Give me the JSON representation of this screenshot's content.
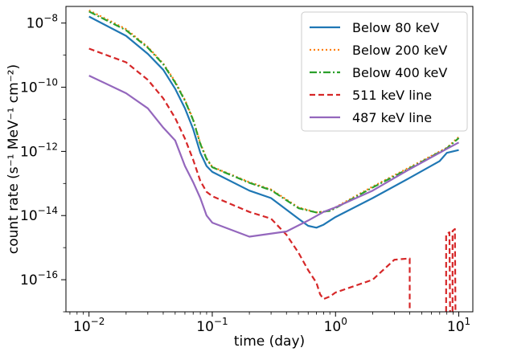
{
  "chart_data": {
    "type": "line",
    "title": "",
    "xlabel": "time (day)",
    "ylabel": "count rate (s⁻¹ MeV⁻¹ cm⁻²)",
    "xscale": "log",
    "yscale": "log",
    "xlim": [
      0.0065,
      13
    ],
    "ylim": [
      1e-17,
      3.3e-08
    ],
    "xticks": [
      {
        "value": 0.01,
        "base": "10",
        "exp": "−2"
      },
      {
        "value": 0.1,
        "base": "10",
        "exp": "−1"
      },
      {
        "value": 1,
        "base": "10",
        "exp": "0"
      },
      {
        "value": 10,
        "base": "10",
        "exp": "1"
      }
    ],
    "yticks": [
      {
        "value": 1e-16,
        "base": "10",
        "exp": "−16"
      },
      {
        "value": 1e-14,
        "base": "10",
        "exp": "−14"
      },
      {
        "value": 1e-12,
        "base": "10",
        "exp": "−12"
      },
      {
        "value": 1e-10,
        "base": "10",
        "exp": "−10"
      },
      {
        "value": 1e-08,
        "base": "10",
        "exp": "−8"
      }
    ],
    "legend_position": "top-right",
    "series": [
      {
        "name": "Below 80 keV",
        "color": "#1f77b4",
        "style": "solid",
        "points": [
          [
            0.01,
            1.6e-08
          ],
          [
            0.02,
            4e-09
          ],
          [
            0.03,
            1.1e-09
          ],
          [
            0.04,
            3.5e-10
          ],
          [
            0.05,
            9e-11
          ],
          [
            0.06,
            2.2e-11
          ],
          [
            0.07,
            5e-12
          ],
          [
            0.08,
            9e-13
          ],
          [
            0.09,
            3.5e-13
          ],
          [
            0.1,
            2.3e-13
          ],
          [
            0.2,
            6e-14
          ],
          [
            0.3,
            3.5e-14
          ],
          [
            0.5,
            8e-15
          ],
          [
            0.6,
            4.8e-15
          ],
          [
            0.7,
            4.2e-15
          ],
          [
            0.8,
            5.2e-15
          ],
          [
            1.0,
            9e-15
          ],
          [
            2.0,
            3.5e-14
          ],
          [
            4.0,
            1.5e-13
          ],
          [
            7.0,
            5e-13
          ],
          [
            8.0,
            9e-13
          ],
          [
            10.0,
            1.1e-12
          ]
        ]
      },
      {
        "name": "Below 200 keV",
        "color": "#ff7f0e",
        "style": "dotted",
        "points": [
          [
            0.01,
            2.5e-08
          ],
          [
            0.02,
            6.5e-09
          ],
          [
            0.03,
            1.8e-09
          ],
          [
            0.04,
            5.5e-10
          ],
          [
            0.05,
            1.5e-10
          ],
          [
            0.06,
            4e-11
          ],
          [
            0.07,
            1e-11
          ],
          [
            0.08,
            1.8e-12
          ],
          [
            0.09,
            6e-13
          ],
          [
            0.1,
            3.3e-13
          ],
          [
            0.2,
            1.1e-13
          ],
          [
            0.3,
            6.5e-14
          ],
          [
            0.5,
            1.8e-14
          ],
          [
            0.7,
            1.25e-14
          ],
          [
            0.9,
            1.4e-14
          ],
          [
            1.0,
            1.8e-14
          ],
          [
            2.0,
            8e-14
          ],
          [
            4.0,
            3.2e-13
          ],
          [
            8.0,
            1.3e-12
          ],
          [
            10.0,
            2.8e-12
          ]
        ]
      },
      {
        "name": "Below 400 keV",
        "color": "#2ca02c",
        "style": "dashdot",
        "points": [
          [
            0.01,
            2.3e-08
          ],
          [
            0.02,
            6e-09
          ],
          [
            0.03,
            1.7e-09
          ],
          [
            0.04,
            5.2e-10
          ],
          [
            0.05,
            1.4e-10
          ],
          [
            0.06,
            3.8e-11
          ],
          [
            0.07,
            9.5e-12
          ],
          [
            0.08,
            1.7e-12
          ],
          [
            0.09,
            5.8e-13
          ],
          [
            0.1,
            3.2e-13
          ],
          [
            0.2,
            1.05e-13
          ],
          [
            0.3,
            6.2e-14
          ],
          [
            0.5,
            1.7e-14
          ],
          [
            0.7,
            1.25e-14
          ],
          [
            0.9,
            1.4e-14
          ],
          [
            1.0,
            1.7e-14
          ],
          [
            2.0,
            7.5e-14
          ],
          [
            4.0,
            3e-13
          ],
          [
            8.0,
            1.25e-12
          ],
          [
            10.0,
            2.6e-12
          ]
        ]
      },
      {
        "name": "511 keV line",
        "color": "#d62728",
        "style": "dashed",
        "segments": [
          [
            [
              0.01,
              1.6e-09
            ],
            [
              0.02,
              6e-10
            ],
            [
              0.03,
              1.7e-10
            ],
            [
              0.04,
              4.5e-11
            ],
            [
              0.05,
              1.1e-11
            ],
            [
              0.06,
              2.5e-12
            ],
            [
              0.07,
              5.5e-13
            ],
            [
              0.08,
              1.2e-13
            ],
            [
              0.09,
              5.5e-14
            ],
            [
              0.1,
              4e-14
            ],
            [
              0.2,
              1.3e-14
            ],
            [
              0.3,
              8e-15
            ],
            [
              0.4,
              2.5e-15
            ],
            [
              0.5,
              7e-16
            ],
            [
              0.6,
              2e-16
            ],
            [
              0.7,
              8e-17
            ],
            [
              0.75,
              3.5e-17
            ],
            [
              0.8,
              2.5e-17
            ],
            [
              0.9,
              3e-17
            ],
            [
              1.0,
              4e-17
            ],
            [
              2.0,
              1e-16
            ],
            [
              3.0,
              4.2e-16
            ],
            [
              4.0,
              4.6e-16
            ],
            [
              4.0,
              1e-17
            ]
          ],
          [
            [
              7.9,
              1e-17
            ],
            [
              7.9,
              2.6e-15
            ],
            [
              8.4,
              3e-15
            ],
            [
              8.5,
              1e-17
            ]
          ],
          [
            [
              8.9,
              1e-17
            ],
            [
              8.9,
              3.3e-15
            ],
            [
              9.3,
              3.8e-15
            ],
            [
              9.4,
              1e-17
            ]
          ]
        ]
      },
      {
        "name": "487 keV line",
        "color": "#9467bd",
        "style": "solid",
        "points": [
          [
            0.01,
            2.3e-10
          ],
          [
            0.02,
            6.5e-11
          ],
          [
            0.03,
            2.2e-11
          ],
          [
            0.04,
            5.5e-12
          ],
          [
            0.05,
            2.2e-12
          ],
          [
            0.06,
            3.5e-13
          ],
          [
            0.07,
            1.1e-13
          ],
          [
            0.08,
            3.5e-14
          ],
          [
            0.09,
            1e-14
          ],
          [
            0.1,
            6e-15
          ],
          [
            0.2,
            2.2e-15
          ],
          [
            0.4,
            3.2e-15
          ],
          [
            0.6,
            7e-15
          ],
          [
            0.8,
            1.3e-14
          ],
          [
            1.0,
            1.8e-14
          ],
          [
            2.0,
            6e-14
          ],
          [
            4.0,
            2.8e-13
          ],
          [
            8.0,
            1.2e-12
          ],
          [
            10.0,
            1.9e-12
          ]
        ]
      }
    ]
  }
}
